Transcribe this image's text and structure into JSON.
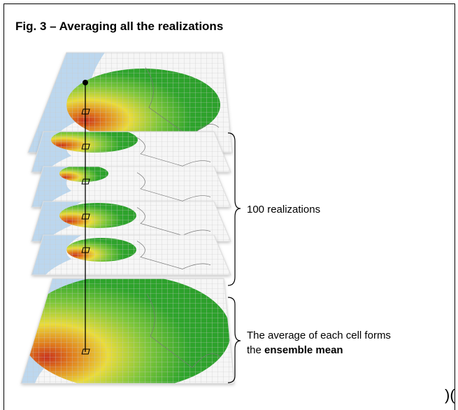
{
  "figure": {
    "title": "Fig. 3 – Averaging all the realizations",
    "realizations_label": "100 realizations",
    "ensemble_label": {
      "line1": "The average of each cell forms",
      "line2_prefix": "the",
      "line2_bold": "ensemble mean"
    },
    "corner_fragment": ")("
  }
}
